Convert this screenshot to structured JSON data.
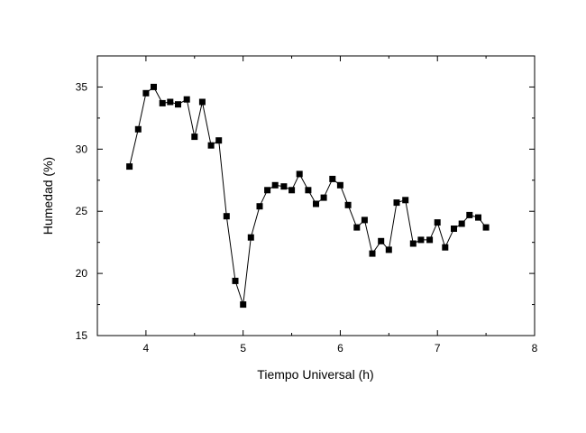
{
  "chart_data": {
    "type": "line",
    "xlabel": "Tiempo Universal (h)",
    "ylabel": "Humedad (%)",
    "xlim": [
      3.5,
      8
    ],
    "ylim": [
      15,
      37.5
    ],
    "x_ticks": [
      4,
      5,
      6,
      7,
      8
    ],
    "y_ticks": [
      15,
      20,
      25,
      30,
      35
    ],
    "x_tick_labels": [
      "4",
      "5",
      "6",
      "7",
      "8"
    ],
    "y_tick_labels": [
      "15",
      "20",
      "25",
      "30",
      "35"
    ],
    "marker": "square",
    "grid": false,
    "series": [
      {
        "color": "#000000",
        "x": [
          3.83,
          3.92,
          4.0,
          4.08,
          4.17,
          4.25,
          4.33,
          4.42,
          4.5,
          4.58,
          4.67,
          4.75,
          4.83,
          4.92,
          5.0,
          5.08,
          5.17,
          5.25,
          5.33,
          5.42,
          5.5,
          5.58,
          5.67,
          5.75,
          5.83,
          5.92,
          6.0,
          6.08,
          6.17,
          6.25,
          6.33,
          6.42,
          6.5,
          6.58,
          6.67,
          6.75,
          6.83,
          6.92,
          7.0,
          7.08,
          7.17,
          7.25,
          7.33,
          7.42,
          7.5
        ],
        "y": [
          28.6,
          31.6,
          34.5,
          35.0,
          33.7,
          33.8,
          33.6,
          34.0,
          31.0,
          33.8,
          30.3,
          30.7,
          24.6,
          19.4,
          17.5,
          22.9,
          25.4,
          26.7,
          27.1,
          27.0,
          26.7,
          28.0,
          26.7,
          25.6,
          26.1,
          27.6,
          27.1,
          25.5,
          23.7,
          24.3,
          21.6,
          22.6,
          21.9,
          25.7,
          25.9,
          22.4,
          22.7,
          22.7,
          24.1,
          22.1,
          23.6,
          24.0,
          24.7,
          24.5,
          23.7
        ]
      }
    ]
  }
}
